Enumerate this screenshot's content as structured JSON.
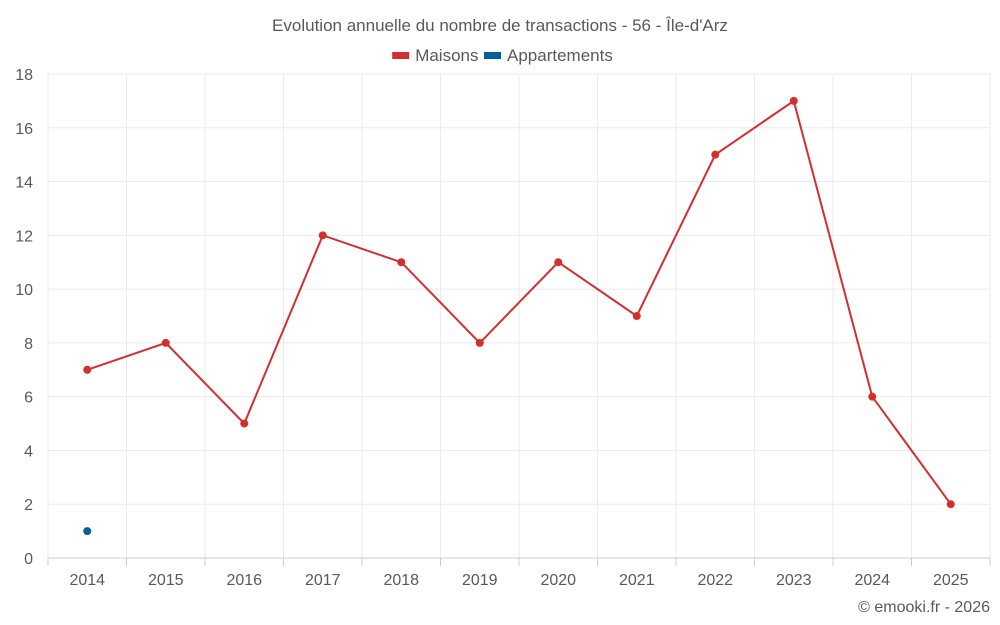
{
  "chart_data": {
    "type": "line",
    "title": "Evolution annuelle du nombre de transactions - 56 - Île-d'Arz",
    "categories": [
      "2014",
      "2015",
      "2016",
      "2017",
      "2018",
      "2019",
      "2020",
      "2021",
      "2022",
      "2023",
      "2024",
      "2025"
    ],
    "series": [
      {
        "name": "Maisons",
        "color": "#d32f2f",
        "values": [
          7,
          8,
          5,
          12,
          11,
          8,
          11,
          9,
          15,
          17,
          6,
          2
        ]
      },
      {
        "name": "Appartements",
        "color": "#00609c",
        "values": [
          1,
          null,
          null,
          null,
          null,
          null,
          null,
          null,
          null,
          null,
          null,
          null
        ]
      }
    ],
    "yticks": [
      0,
      2,
      4,
      6,
      8,
      10,
      12,
      14,
      16,
      18
    ],
    "ylim": [
      0,
      18
    ],
    "xlabel": "",
    "ylabel": "",
    "grid": true
  },
  "credit": "© emooki.fr - 2026"
}
